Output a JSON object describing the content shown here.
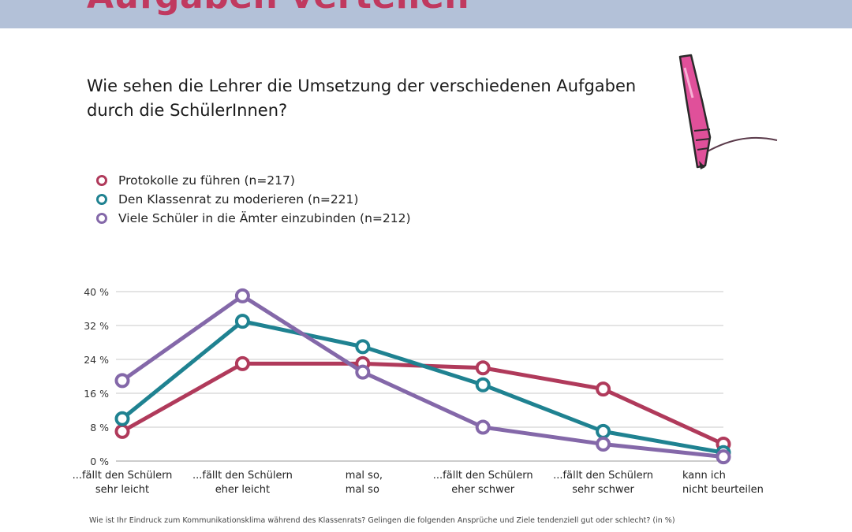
{
  "banner": {
    "title": "Aufgaben verteilen"
  },
  "question": {
    "line1": "Wie sehen die Lehrer die Umsetzung der verschiedenen Aufgaben",
    "line2": "durch die SchülerInnen?"
  },
  "footnote": "Wie ist Ihr Eindruck zum Kommunikationsklima während des Klassenrats? Gelingen die folgenden Ansprüche und Ziele tendenziell gut oder schlecht? (in %)",
  "icons": {
    "decoration": "fountain-pen-icon"
  },
  "colors": {
    "protokolle": "#b03a5b",
    "klassenrat": "#1f8291",
    "aemter": "#8468a9",
    "grid": "#c8c8c8",
    "banner": "#b3c1d8",
    "banner_text": "#c0395f"
  },
  "chart_data": {
    "type": "line",
    "categories": [
      [
        "...fällt den Schülern",
        "sehr leicht"
      ],
      [
        "...fällt den Schülern",
        "eher leicht"
      ],
      [
        "mal so,",
        "mal so"
      ],
      [
        "...fällt den Schülern",
        "eher schwer"
      ],
      [
        "...fällt den Schülern",
        "sehr schwer"
      ],
      [
        "kann ich",
        "nicht beurteilen"
      ]
    ],
    "series": [
      {
        "name": "Protokolle zu führen (n=217)",
        "color": "#b03a5b",
        "values": [
          7,
          23,
          23,
          22,
          17,
          4
        ]
      },
      {
        "name": "Den Klassenrat zu moderieren (n=221)",
        "color": "#1f8291",
        "values": [
          10,
          33,
          27,
          18,
          7,
          2
        ]
      },
      {
        "name": "Viele Schüler in die Ämter einzubinden (n=212)",
        "color": "#8468a9",
        "values": [
          19,
          39,
          21,
          8,
          4,
          1
        ]
      }
    ],
    "yticks": [
      0,
      8,
      16,
      24,
      32,
      40
    ],
    "ytick_labels": [
      "0 %",
      "8 %",
      "16 %",
      "24 %",
      "32 %",
      "40 %"
    ],
    "ylim": [
      0,
      40
    ],
    "grid": true,
    "legend_position": "top-left"
  }
}
